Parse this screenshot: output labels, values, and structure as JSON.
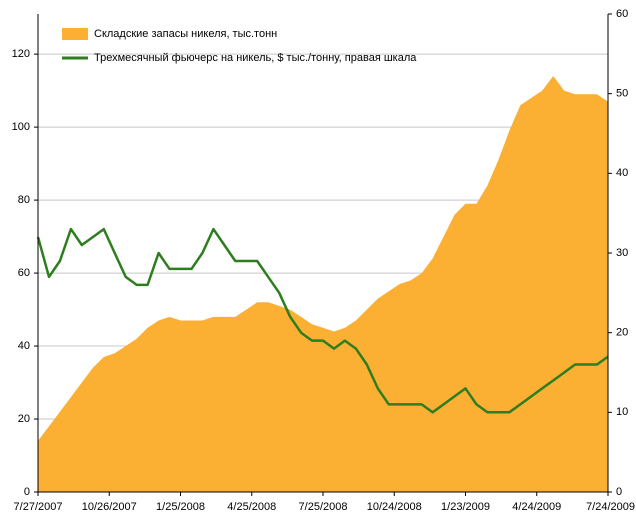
{
  "chart_data": {
    "type": "area_line",
    "x": [
      "7/27/2007",
      "8/10/2007",
      "8/24/2007",
      "9/7/2007",
      "9/21/2007",
      "10/5/2007",
      "10/19/2007",
      "11/2/2007",
      "11/16/2007",
      "11/30/2007",
      "12/14/2007",
      "12/28/2007",
      "1/11/2008",
      "1/25/2008",
      "2/8/2008",
      "2/22/2008",
      "3/7/2008",
      "3/21/2008",
      "4/4/2008",
      "4/18/2008",
      "5/2/2008",
      "5/16/2008",
      "5/30/2008",
      "6/13/2008",
      "6/27/2008",
      "7/11/2008",
      "7/25/2008",
      "8/8/2008",
      "8/22/2008",
      "9/5/2008",
      "9/19/2008",
      "10/3/2008",
      "10/17/2008",
      "10/31/2008",
      "11/14/2008",
      "11/28/2008",
      "12/12/2008",
      "12/26/2008",
      "1/9/2009",
      "1/23/2009",
      "2/6/2009",
      "2/20/2009",
      "3/6/2009",
      "3/20/2009",
      "4/3/2009",
      "4/17/2009",
      "5/1/2009",
      "5/15/2009",
      "5/29/2009",
      "6/12/2009",
      "6/26/2009",
      "7/10/2009",
      "7/24/2009"
    ],
    "series": [
      {
        "name": "Складские запасы никеля, тыс.тонн",
        "color": "#fbb034",
        "kind": "area",
        "values": [
          14,
          18,
          22,
          26,
          30,
          34,
          37,
          38,
          40,
          42,
          45,
          47,
          48,
          47,
          47,
          47,
          48,
          48,
          48,
          50,
          52,
          52,
          51,
          50,
          48,
          46,
          45,
          44,
          45,
          47,
          50,
          53,
          55,
          57,
          58,
          60,
          64,
          70,
          76,
          79,
          79,
          84,
          91,
          99,
          106,
          108,
          110,
          114,
          110,
          109,
          109,
          109,
          107
        ]
      },
      {
        "name": "Трехмесячный фьючерс на никель, $ тыс./тонну, правая шкала",
        "color": "#2e7d1e",
        "kind": "line",
        "axis": "y2",
        "values": [
          32,
          27,
          29,
          33,
          31,
          32,
          33,
          30,
          27,
          26,
          26,
          30,
          28,
          28,
          28,
          30,
          33,
          31,
          29,
          29,
          29,
          27,
          25,
          22,
          20,
          19,
          19,
          18,
          19,
          18,
          16,
          13,
          11,
          11,
          11,
          11,
          10,
          11,
          12,
          13,
          11,
          10,
          10,
          10,
          11,
          12,
          13,
          14,
          15,
          16,
          16,
          16,
          17
        ]
      }
    ],
    "xlim": [
      "7/27/2007",
      "7/24/2009"
    ],
    "xticks": [
      "7/27/2007",
      "10/26/2007",
      "1/25/2008",
      "4/25/2008",
      "7/25/2008",
      "10/24/2008",
      "1/23/2009",
      "4/24/2009",
      "7/24/2009"
    ],
    "ylim": [
      0,
      131
    ],
    "yticks": [
      0,
      20,
      40,
      60,
      80,
      100,
      120
    ],
    "y2lim": [
      0,
      60
    ],
    "y2ticks": [
      0,
      10,
      20,
      30,
      40,
      50,
      60
    ],
    "grid": true,
    "legend": "top-left"
  }
}
